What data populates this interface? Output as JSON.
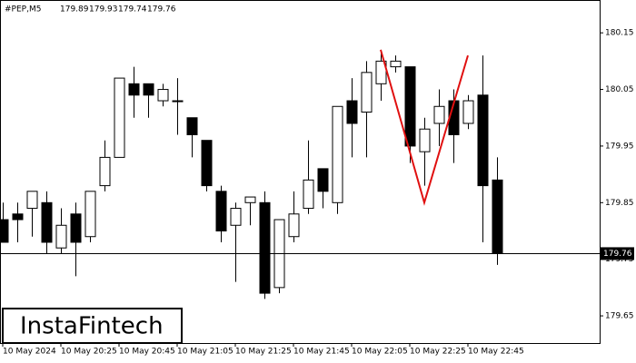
{
  "chart_data": {
    "type": "candlestick",
    "title": "#PEP,M5",
    "watermark": "InstaFintech",
    "categories": [
      "10 May 2024",
      null,
      null,
      null,
      "10 May 20:25",
      null,
      null,
      null,
      "10 May 20:45",
      null,
      null,
      null,
      "10 May 21:05",
      null,
      null,
      null,
      "10 May 21:25",
      null,
      null,
      null,
      "10 May 21:45",
      null,
      null,
      null,
      "10 May 22:05",
      null,
      null,
      null,
      "10 May 22:25",
      null,
      null,
      null,
      "10 May 22:45",
      null,
      null
    ],
    "open": [
      179.82,
      179.83,
      179.84,
      179.85,
      179.77,
      179.83,
      179.79,
      179.88,
      179.93,
      180.06,
      180.06,
      180.03,
      180.03,
      180.0,
      179.96,
      179.87,
      179.81,
      179.85,
      179.85,
      179.7,
      179.79,
      179.84,
      179.91,
      179.85,
      180.03,
      180.01,
      180.06,
      180.09,
      180.09,
      179.94,
      179.99,
      180.03,
      179.99,
      180.04,
      179.89
    ],
    "high": [
      179.85,
      179.85,
      179.87,
      179.87,
      179.84,
      179.85,
      179.87,
      179.96,
      180.07,
      180.09,
      180.06,
      180.06,
      180.07,
      180.0,
      179.96,
      179.88,
      179.85,
      179.86,
      179.87,
      179.82,
      179.87,
      179.96,
      179.91,
      180.02,
      180.07,
      180.1,
      180.12,
      180.11,
      180.09,
      180.0,
      180.05,
      180.05,
      180.04,
      180.11,
      179.93
    ],
    "low": [
      179.78,
      179.78,
      179.79,
      179.76,
      179.76,
      179.72,
      179.78,
      179.87,
      179.93,
      180.0,
      180.0,
      180.02,
      179.97,
      179.93,
      179.87,
      179.78,
      179.71,
      179.81,
      179.68,
      179.69,
      179.78,
      179.83,
      179.84,
      179.83,
      179.93,
      179.93,
      180.03,
      180.08,
      179.92,
      179.88,
      179.95,
      179.92,
      179.98,
      179.78,
      179.74
    ],
    "close": [
      179.78,
      179.82,
      179.87,
      179.78,
      179.81,
      179.78,
      179.87,
      179.93,
      180.07,
      180.04,
      180.04,
      180.05,
      180.03,
      179.97,
      179.88,
      179.8,
      179.84,
      179.86,
      179.69,
      179.82,
      179.83,
      179.89,
      179.87,
      180.02,
      179.99,
      180.08,
      180.1,
      180.1,
      179.95,
      179.98,
      180.02,
      179.97,
      180.03,
      179.88,
      179.76
    ],
    "up_color": "#ffffff",
    "down_color": "#000000",
    "ylim": [
      179.602,
      180.208
    ],
    "yticks": [
      179.65,
      179.75,
      179.85,
      179.95,
      180.05,
      180.15
    ],
    "current_price": 179.76,
    "pattern": {
      "color": "#e01010",
      "x": [
        26,
        29,
        32
      ],
      "values": [
        180.12,
        179.85,
        180.11
      ]
    }
  }
}
